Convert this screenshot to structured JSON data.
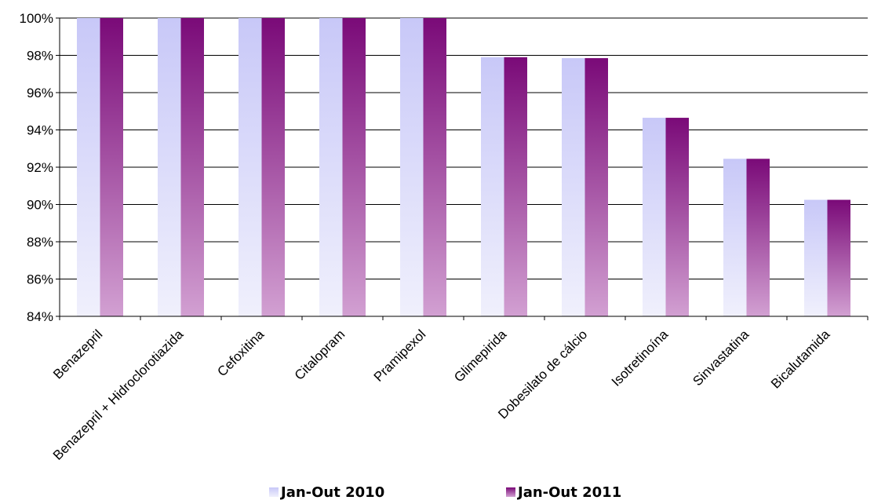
{
  "chart_data": {
    "type": "bar",
    "categories": [
      "Benazepril",
      "Benazepril + Hidroclorotiazida",
      "Cefoxitina",
      "Citalopram",
      "Pramipexol",
      "Glimepirida",
      "Dobesilato de cálcio",
      "Isotretinoína",
      "Sinvastatina",
      "Bicalutamida"
    ],
    "series": [
      {
        "name": "Jan-Out 2010",
        "values": [
          100,
          100,
          100,
          100,
          100,
          97.9,
          97.85,
          94.65,
          92.45,
          90.25
        ]
      },
      {
        "name": "Jan-Out 2011",
        "values": [
          100,
          100,
          100,
          100,
          100,
          97.9,
          97.85,
          94.65,
          92.45,
          90.25
        ]
      }
    ],
    "yticks": [
      "84%",
      "86%",
      "88%",
      "90%",
      "92%",
      "94%",
      "96%",
      "98%",
      "100%"
    ],
    "ylim": [
      84,
      100
    ],
    "grid": true,
    "legend_position": "bottom",
    "colors": {
      "series1_top": "#c8c8f8",
      "series1_bottom": "#f0f0fc",
      "series2_top": "#7a0a78",
      "series2_bottom": "#d2a0d2",
      "grid": "#000000"
    }
  }
}
